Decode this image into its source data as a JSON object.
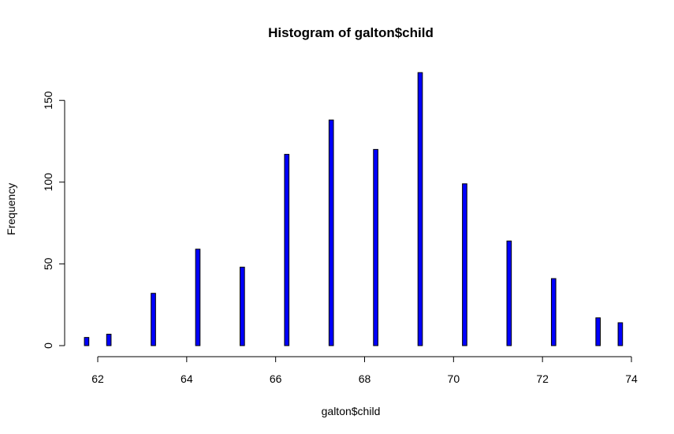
{
  "chart_data": {
    "type": "bar",
    "title": "Histogram of galton$child",
    "xlabel": "galton$child",
    "ylabel": "Frequency",
    "x": [
      61.7,
      62.2,
      63.2,
      64.2,
      65.2,
      66.2,
      67.2,
      68.2,
      69.2,
      70.2,
      71.2,
      72.2,
      73.2,
      73.7
    ],
    "values": [
      5,
      7,
      32,
      59,
      48,
      117,
      138,
      120,
      167,
      99,
      64,
      41,
      17,
      14
    ],
    "bin_width": 0.1,
    "xlim": [
      61.7,
      74
    ],
    "ylim": [
      0,
      167
    ],
    "xticks": [
      62,
      64,
      66,
      68,
      70,
      72,
      74
    ],
    "yticks": [
      0,
      50,
      100,
      150
    ],
    "bar_color": "#0000ff",
    "grid": false
  }
}
